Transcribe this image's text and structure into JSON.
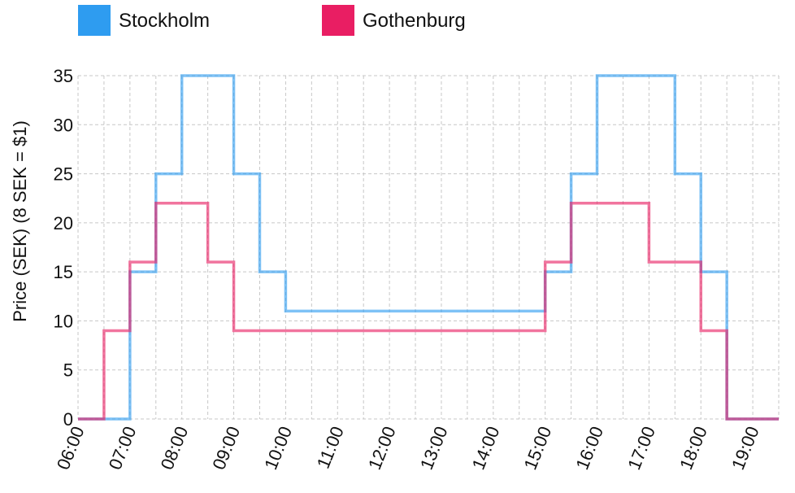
{
  "chart_data": {
    "type": "line",
    "step": true,
    "ylabel": "Price (SEK) (8 SEK = $1)",
    "xlabel": "",
    "ylim": [
      0,
      35
    ],
    "yticks": [
      "0",
      "5",
      "10",
      "15",
      "20",
      "25",
      "30",
      "35"
    ],
    "xlim": [
      "06:00",
      "19:30"
    ],
    "xticks": [
      "06:00",
      "07:00",
      "08:00",
      "09:00",
      "10:00",
      "11:00",
      "12:00",
      "13:00",
      "14:00",
      "15:00",
      "16:00",
      "17:00",
      "18:00",
      "19:00"
    ],
    "grid": true,
    "legend_position": "top",
    "x": [
      "06:00",
      "06:30",
      "07:00",
      "07:30",
      "08:00",
      "08:30",
      "09:00",
      "09:30",
      "10:00",
      "10:30",
      "11:00",
      "11:30",
      "12:00",
      "12:30",
      "13:00",
      "13:30",
      "14:00",
      "14:30",
      "15:00",
      "15:30",
      "16:00",
      "16:30",
      "17:00",
      "17:30",
      "18:00",
      "18:30",
      "19:00",
      "19:30"
    ],
    "series": [
      {
        "name": "Stockholm",
        "color": "#2e9cf0",
        "values": [
          0,
          0,
          15,
          25,
          35,
          35,
          25,
          15,
          11,
          11,
          11,
          11,
          11,
          11,
          11,
          11,
          11,
          11,
          15,
          25,
          35,
          35,
          35,
          25,
          15,
          0,
          0,
          0
        ]
      },
      {
        "name": "Gothenburg",
        "color": "#e91e63",
        "values": [
          0,
          9,
          16,
          22,
          22,
          16,
          9,
          9,
          9,
          9,
          9,
          9,
          9,
          9,
          9,
          9,
          9,
          9,
          16,
          22,
          22,
          22,
          16,
          16,
          9,
          0,
          0,
          0
        ]
      }
    ]
  }
}
